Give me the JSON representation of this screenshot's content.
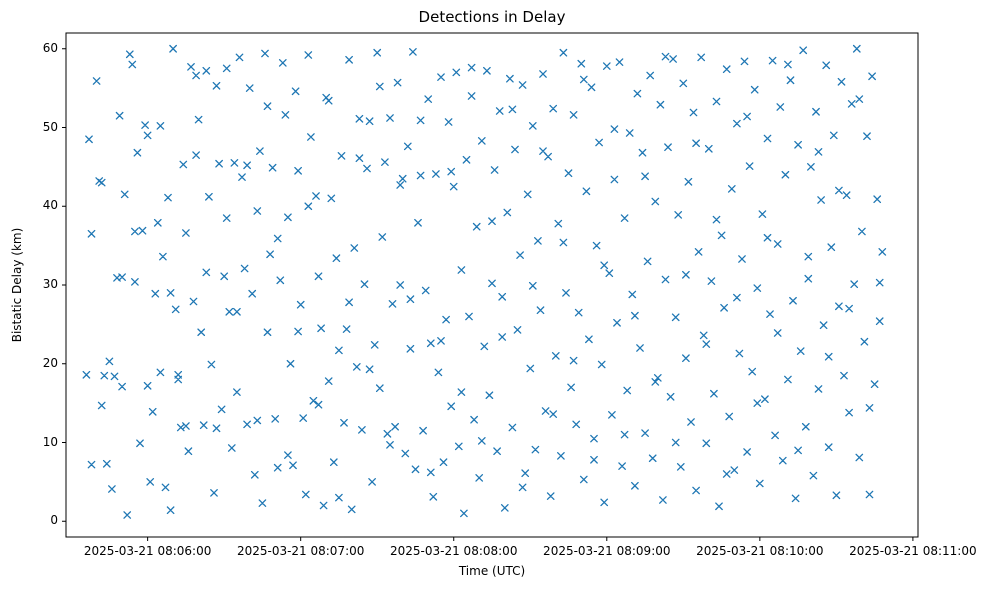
{
  "chart_data": {
    "type": "scatter",
    "title": "Detections in Delay",
    "xlabel": "Time (UTC)",
    "ylabel": "Bistatic Delay (km)",
    "marker": "x",
    "color": "#1f77b4",
    "legend": "none",
    "grid": false,
    "x_tick_seconds": [
      0,
      60,
      120,
      180,
      240,
      300
    ],
    "x_tick_labels": [
      "2025-03-21 08:06:00",
      "2025-03-21 08:07:00",
      "2025-03-21 08:08:00",
      "2025-03-21 08:09:00",
      "2025-03-21 08:10:00",
      "2025-03-21 08:11:00"
    ],
    "x_range_seconds": [
      -32,
      302
    ],
    "y_ticks": [
      0,
      10,
      20,
      30,
      40,
      50,
      60
    ],
    "y_range": [
      -2,
      62
    ],
    "points": [
      [
        -24,
        18.6
      ],
      [
        -23,
        48.5
      ],
      [
        -22,
        36.5
      ],
      [
        -20,
        55.9
      ],
      [
        -19,
        43.2
      ],
      [
        -18,
        14.7
      ],
      [
        -17,
        18.5
      ],
      [
        -16,
        7.3
      ],
      [
        -15,
        20.3
      ],
      [
        -14,
        4.1
      ],
      [
        -13,
        18.4
      ],
      [
        -12,
        30.9
      ],
      [
        -11,
        51.5
      ],
      [
        -10,
        17.1
      ],
      [
        -9,
        41.5
      ],
      [
        -8,
        0.8
      ],
      [
        -7,
        59.3
      ],
      [
        -6,
        58.0
      ],
      [
        -5,
        30.4
      ],
      [
        -4,
        46.8
      ],
      [
        -3,
        9.9
      ],
      [
        -2,
        36.9
      ],
      [
        -1,
        50.3
      ],
      [
        0,
        49.0
      ],
      [
        1,
        5.0
      ],
      [
        2,
        13.9
      ],
      [
        3,
        28.9
      ],
      [
        4,
        37.9
      ],
      [
        5,
        18.9
      ],
      [
        6,
        33.6
      ],
      [
        7,
        4.3
      ],
      [
        8,
        41.1
      ],
      [
        9,
        1.4
      ],
      [
        10,
        60.0
      ],
      [
        11,
        26.9
      ],
      [
        12,
        18.6
      ],
      [
        13,
        11.9
      ],
      [
        14,
        45.3
      ],
      [
        15,
        36.6
      ],
      [
        16,
        8.9
      ],
      [
        17,
        57.7
      ],
      [
        18,
        27.9
      ],
      [
        19,
        56.6
      ],
      [
        20,
        51.0
      ],
      [
        21,
        24.0
      ],
      [
        22,
        12.2
      ],
      [
        23,
        57.2
      ],
      [
        24,
        41.2
      ],
      [
        25,
        19.9
      ],
      [
        26,
        3.6
      ],
      [
        27,
        55.3
      ],
      [
        28,
        45.4
      ],
      [
        29,
        14.2
      ],
      [
        30,
        31.1
      ],
      [
        31,
        38.5
      ],
      [
        32,
        26.6
      ],
      [
        33,
        9.3
      ],
      [
        34,
        45.5
      ],
      [
        35,
        16.4
      ],
      [
        36,
        58.9
      ],
      [
        37,
        43.7
      ],
      [
        38,
        32.1
      ],
      [
        39,
        12.3
      ],
      [
        40,
        55.0
      ],
      [
        41,
        28.9
      ],
      [
        42,
        5.9
      ],
      [
        43,
        39.4
      ],
      [
        44,
        47.0
      ],
      [
        45,
        2.3
      ],
      [
        46,
        59.4
      ],
      [
        47,
        24.0
      ],
      [
        48,
        33.9
      ],
      [
        49,
        44.9
      ],
      [
        50,
        13.0
      ],
      [
        51,
        6.8
      ],
      [
        52,
        30.6
      ],
      [
        53,
        58.2
      ],
      [
        54,
        51.6
      ],
      [
        55,
        38.6
      ],
      [
        56,
        20.0
      ],
      [
        57,
        7.1
      ],
      [
        58,
        54.6
      ],
      [
        59,
        44.5
      ],
      [
        60,
        27.5
      ],
      [
        61,
        13.1
      ],
      [
        62,
        3.4
      ],
      [
        63,
        59.2
      ],
      [
        64,
        48.8
      ],
      [
        65,
        15.3
      ],
      [
        66,
        41.3
      ],
      [
        67,
        31.1
      ],
      [
        68,
        24.5
      ],
      [
        69,
        2.0
      ],
      [
        70,
        53.8
      ],
      [
        71,
        17.8
      ],
      [
        72,
        41.0
      ],
      [
        73,
        7.5
      ],
      [
        74,
        33.4
      ],
      [
        75,
        21.7
      ],
      [
        76,
        46.4
      ],
      [
        77,
        12.5
      ],
      [
        78,
        24.4
      ],
      [
        79,
        58.6
      ],
      [
        80,
        1.5
      ],
      [
        81,
        34.7
      ],
      [
        82,
        19.6
      ],
      [
        83,
        51.1
      ],
      [
        84,
        11.6
      ],
      [
        85,
        30.1
      ],
      [
        86,
        44.8
      ],
      [
        87,
        50.8
      ],
      [
        88,
        5.0
      ],
      [
        89,
        22.4
      ],
      [
        90,
        59.5
      ],
      [
        91,
        16.9
      ],
      [
        92,
        36.1
      ],
      [
        93,
        45.6
      ],
      [
        94,
        11.1
      ],
      [
        95,
        51.2
      ],
      [
        96,
        27.6
      ],
      [
        97,
        12.0
      ],
      [
        98,
        55.7
      ],
      [
        99,
        30.0
      ],
      [
        100,
        43.5
      ],
      [
        101,
        8.6
      ],
      [
        102,
        47.6
      ],
      [
        103,
        21.9
      ],
      [
        104,
        59.6
      ],
      [
        105,
        6.6
      ],
      [
        106,
        37.9
      ],
      [
        107,
        43.9
      ],
      [
        108,
        11.5
      ],
      [
        109,
        29.3
      ],
      [
        110,
        53.6
      ],
      [
        111,
        22.6
      ],
      [
        112,
        3.1
      ],
      [
        113,
        44.1
      ],
      [
        114,
        18.9
      ],
      [
        115,
        56.4
      ],
      [
        116,
        7.5
      ],
      [
        117,
        25.6
      ],
      [
        118,
        50.7
      ],
      [
        119,
        14.6
      ],
      [
        120,
        42.5
      ],
      [
        121,
        57.0
      ],
      [
        122,
        9.5
      ],
      [
        123,
        31.9
      ],
      [
        124,
        1.0
      ],
      [
        125,
        45.9
      ],
      [
        126,
        26.0
      ],
      [
        127,
        54.0
      ],
      [
        128,
        12.9
      ],
      [
        129,
        37.4
      ],
      [
        130,
        5.5
      ],
      [
        131,
        48.3
      ],
      [
        132,
        22.2
      ],
      [
        133,
        57.2
      ],
      [
        134,
        16.0
      ],
      [
        135,
        30.2
      ],
      [
        136,
        44.6
      ],
      [
        137,
        8.9
      ],
      [
        138,
        52.1
      ],
      [
        139,
        28.5
      ],
      [
        140,
        1.7
      ],
      [
        141,
        39.2
      ],
      [
        142,
        56.2
      ],
      [
        143,
        11.9
      ],
      [
        144,
        47.2
      ],
      [
        145,
        24.3
      ],
      [
        146,
        33.8
      ],
      [
        147,
        55.4
      ],
      [
        148,
        6.1
      ],
      [
        149,
        41.5
      ],
      [
        150,
        19.4
      ],
      [
        151,
        50.2
      ],
      [
        152,
        9.1
      ],
      [
        153,
        35.6
      ],
      [
        154,
        26.8
      ],
      [
        155,
        56.8
      ],
      [
        156,
        14.0
      ],
      [
        157,
        46.3
      ],
      [
        158,
        3.2
      ],
      [
        159,
        52.4
      ],
      [
        160,
        21.0
      ],
      [
        161,
        37.8
      ],
      [
        162,
        8.3
      ],
      [
        163,
        59.5
      ],
      [
        164,
        29.0
      ],
      [
        165,
        44.2
      ],
      [
        166,
        17.0
      ],
      [
        167,
        51.6
      ],
      [
        168,
        12.3
      ],
      [
        169,
        26.5
      ],
      [
        170,
        58.1
      ],
      [
        171,
        5.3
      ],
      [
        172,
        41.9
      ],
      [
        173,
        23.1
      ],
      [
        174,
        55.1
      ],
      [
        175,
        10.5
      ],
      [
        176,
        35.0
      ],
      [
        177,
        48.1
      ],
      [
        178,
        19.9
      ],
      [
        179,
        2.4
      ],
      [
        180,
        57.8
      ],
      [
        181,
        31.5
      ],
      [
        182,
        13.5
      ],
      [
        183,
        43.4
      ],
      [
        184,
        25.2
      ],
      [
        185,
        58.3
      ],
      [
        186,
        7.0
      ],
      [
        187,
        38.5
      ],
      [
        188,
        16.6
      ],
      [
        189,
        49.3
      ],
      [
        190,
        28.8
      ],
      [
        191,
        4.5
      ],
      [
        192,
        54.3
      ],
      [
        193,
        22.0
      ],
      [
        194,
        46.8
      ],
      [
        195,
        11.2
      ],
      [
        196,
        33.0
      ],
      [
        197,
        56.6
      ],
      [
        198,
        8.0
      ],
      [
        199,
        40.6
      ],
      [
        200,
        18.2
      ],
      [
        201,
        52.9
      ],
      [
        202,
        2.7
      ],
      [
        203,
        30.7
      ],
      [
        204,
        47.5
      ],
      [
        205,
        15.8
      ],
      [
        206,
        58.7
      ],
      [
        207,
        25.9
      ],
      [
        208,
        38.9
      ],
      [
        209,
        6.9
      ],
      [
        210,
        55.6
      ],
      [
        211,
        20.7
      ],
      [
        212,
        43.1
      ],
      [
        213,
        12.6
      ],
      [
        214,
        51.9
      ],
      [
        215,
        3.9
      ],
      [
        216,
        34.2
      ],
      [
        217,
        58.9
      ],
      [
        218,
        23.6
      ],
      [
        219,
        9.9
      ],
      [
        220,
        47.3
      ],
      [
        221,
        30.5
      ],
      [
        222,
        16.2
      ],
      [
        223,
        53.3
      ],
      [
        224,
        1.9
      ],
      [
        225,
        36.3
      ],
      [
        226,
        27.1
      ],
      [
        227,
        57.4
      ],
      [
        228,
        13.3
      ],
      [
        229,
        42.2
      ],
      [
        230,
        6.5
      ],
      [
        231,
        50.5
      ],
      [
        232,
        21.3
      ],
      [
        233,
        33.3
      ],
      [
        234,
        58.4
      ],
      [
        235,
        8.8
      ],
      [
        236,
        45.1
      ],
      [
        237,
        19.0
      ],
      [
        238,
        54.8
      ],
      [
        239,
        29.6
      ],
      [
        240,
        4.8
      ],
      [
        241,
        39.0
      ],
      [
        242,
        15.5
      ],
      [
        243,
        48.6
      ],
      [
        244,
        26.3
      ],
      [
        245,
        58.5
      ],
      [
        246,
        10.9
      ],
      [
        247,
        35.2
      ],
      [
        248,
        52.6
      ],
      [
        249,
        7.7
      ],
      [
        250,
        44.0
      ],
      [
        251,
        18.0
      ],
      [
        252,
        56.0
      ],
      [
        253,
        28.0
      ],
      [
        254,
        2.9
      ],
      [
        255,
        47.8
      ],
      [
        256,
        21.6
      ],
      [
        257,
        59.8
      ],
      [
        258,
        12.0
      ],
      [
        259,
        30.8
      ],
      [
        260,
        45.0
      ],
      [
        261,
        5.8
      ],
      [
        262,
        52.0
      ],
      [
        263,
        16.8
      ],
      [
        264,
        40.8
      ],
      [
        265,
        24.9
      ],
      [
        266,
        57.9
      ],
      [
        267,
        9.4
      ],
      [
        268,
        34.8
      ],
      [
        269,
        49.0
      ],
      [
        270,
        3.3
      ],
      [
        271,
        27.3
      ],
      [
        272,
        55.8
      ],
      [
        273,
        18.5
      ],
      [
        274,
        41.4
      ],
      [
        275,
        13.8
      ],
      [
        276,
        53.0
      ],
      [
        277,
        30.1
      ],
      [
        278,
        60.0
      ],
      [
        279,
        8.1
      ],
      [
        280,
        36.8
      ],
      [
        281,
        22.8
      ],
      [
        282,
        48.9
      ],
      [
        283,
        3.4
      ],
      [
        284,
        56.5
      ],
      [
        285,
        17.4
      ],
      [
        286,
        40.9
      ],
      [
        287,
        25.4
      ],
      [
        288,
        34.2
      ],
      [
        -22,
        7.2
      ],
      [
        -18,
        43.0
      ],
      [
        -10,
        31.0
      ],
      [
        -5,
        36.8
      ],
      [
        0,
        17.2
      ],
      [
        5,
        50.2
      ],
      [
        9,
        29.0
      ],
      [
        12,
        18.0
      ],
      [
        15,
        12.1
      ],
      [
        19,
        46.5
      ],
      [
        23,
        31.6
      ],
      [
        27,
        11.8
      ],
      [
        31,
        57.5
      ],
      [
        35,
        26.6
      ],
      [
        39,
        45.2
      ],
      [
        43,
        12.8
      ],
      [
        47,
        52.7
      ],
      [
        51,
        35.9
      ],
      [
        55,
        8.4
      ],
      [
        59,
        24.1
      ],
      [
        63,
        40.0
      ],
      [
        67,
        14.8
      ],
      [
        71,
        53.4
      ],
      [
        75,
        3.0
      ],
      [
        79,
        27.8
      ],
      [
        83,
        46.1
      ],
      [
        87,
        19.3
      ],
      [
        91,
        55.2
      ],
      [
        95,
        9.7
      ],
      [
        99,
        42.7
      ],
      [
        103,
        28.2
      ],
      [
        107,
        50.9
      ],
      [
        111,
        6.2
      ],
      [
        115,
        22.9
      ],
      [
        119,
        44.4
      ],
      [
        123,
        16.4
      ],
      [
        127,
        57.6
      ],
      [
        131,
        10.2
      ],
      [
        135,
        38.1
      ],
      [
        139,
        23.4
      ],
      [
        143,
        52.3
      ],
      [
        147,
        4.3
      ],
      [
        151,
        29.9
      ],
      [
        155,
        47.0
      ],
      [
        159,
        13.6
      ],
      [
        163,
        35.4
      ],
      [
        167,
        20.4
      ],
      [
        171,
        56.1
      ],
      [
        175,
        7.8
      ],
      [
        179,
        32.5
      ],
      [
        183,
        49.8
      ],
      [
        187,
        11.0
      ],
      [
        191,
        26.1
      ],
      [
        195,
        43.8
      ],
      [
        199,
        17.7
      ],
      [
        203,
        59.0
      ],
      [
        207,
        10.0
      ],
      [
        211,
        31.3
      ],
      [
        215,
        48.0
      ],
      [
        219,
        22.5
      ],
      [
        223,
        38.3
      ],
      [
        227,
        6.0
      ],
      [
        231,
        28.4
      ],
      [
        235,
        51.4
      ],
      [
        239,
        15.0
      ],
      [
        243,
        36.0
      ],
      [
        247,
        23.9
      ],
      [
        251,
        58.0
      ],
      [
        255,
        9.0
      ],
      [
        259,
        33.6
      ],
      [
        263,
        46.9
      ],
      [
        267,
        20.9
      ],
      [
        271,
        42.0
      ],
      [
        275,
        27.0
      ],
      [
        279,
        53.6
      ],
      [
        283,
        14.4
      ],
      [
        287,
        30.3
      ]
    ]
  }
}
